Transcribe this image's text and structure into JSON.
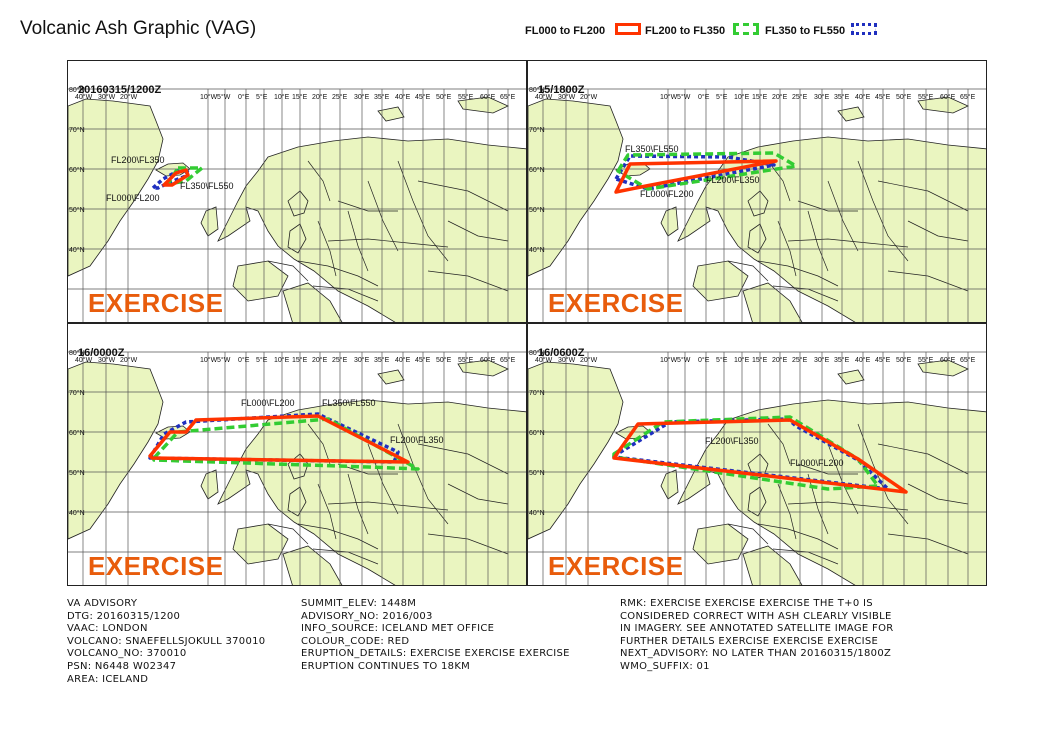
{
  "title": "Volcanic Ash Graphic (VAG)",
  "legend": [
    {
      "label": "FL000 to FL200",
      "color": "#ff3300",
      "style": "solid"
    },
    {
      "label": "FL200 to FL350",
      "color": "#33cc33",
      "style": "dashed"
    },
    {
      "label": "FL350 to FL550",
      "color": "#1f2fbf",
      "style": "dotted"
    }
  ],
  "map": {
    "lon_labels": [
      "40°W",
      "30°W",
      "20°W",
      "10°W",
      "5°W",
      "0°E",
      "5°E",
      "10°E",
      "15°E",
      "20°E",
      "25°E",
      "30°E",
      "35°E",
      "40°E",
      "45°E",
      "50°E",
      "55°E",
      "60°E",
      "65°E"
    ],
    "lat_labels": [
      "80°N",
      "70°N",
      "60°N",
      "50°N",
      "40°N"
    ],
    "land_color": "#eaf5c0",
    "watermark": "EXERCISE"
  },
  "panels": [
    {
      "time": "20160315/1200Z",
      "labels": [
        "FL200\\FL350",
        "FL350\\FL550",
        "FL000\\FL200"
      ]
    },
    {
      "time": "15/1800Z",
      "labels": [
        "FL350\\FL550",
        "FL200\\FL350",
        "FL000\\FL200"
      ]
    },
    {
      "time": "16/0000Z",
      "labels": [
        "FL000\\FL200",
        "FL200\\FL350",
        "FL350\\FL550"
      ]
    },
    {
      "time": "16/0600Z",
      "labels": [
        "FL200\\FL350",
        "FL000\\FL200"
      ]
    }
  ],
  "advisory": {
    "col1": [
      "VA ADVISORY",
      "DTG: 20160315/1200",
      "VAAC: LONDON",
      "VOLCANO: SNAEFELLSJOKULL 370010",
      "VOLCANO_NO: 370010",
      "PSN: N6448 W02347",
      "AREA: ICELAND"
    ],
    "col2": [
      "SUMMIT_ELEV: 1448M",
      "ADVISORY_NO: 2016/003",
      "INFO_SOURCE: ICELAND MET OFFICE",
      "COLOUR_CODE: RED",
      "ERUPTION_DETAILS: EXERCISE EXERCISE EXERCISE",
      "ERUPTION CONTINUES TO 18KM"
    ],
    "col3": [
      "RMK: EXERCISE EXERCISE EXERCISE THE T+0 IS",
      "CONSIDERED CORRECT WITH ASH CLEARLY VISIBLE",
      "IN IMAGERY. SEE ANNOTATED SATELLITE IMAGE FOR",
      "FURTHER DETAILS EXERCISE EXERCISE EXERCISE",
      "NEXT_ADVISORY: NO LATER THAN 20160315/1800Z",
      "WMO_SUFFIX: 01"
    ]
  }
}
